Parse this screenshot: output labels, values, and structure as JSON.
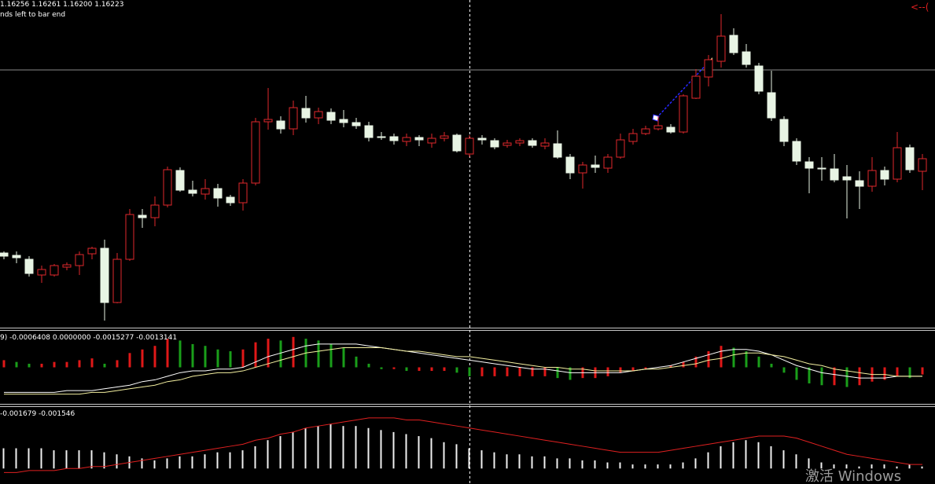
{
  "header": {
    "ohlc_text": "1.16256 1.16261 1.16200 1.16223",
    "timer_text": "nds left to bar end",
    "arrow_text": "<--("
  },
  "watermark": "激活 Windows",
  "chart_data": [
    {
      "type": "candlestick",
      "ylim": [
        1.15985,
        1.164
      ],
      "up_color": "#e0282d",
      "down_color": "#e8f4e4",
      "open": [
        1.16078,
        1.16075,
        1.1607,
        1.1605,
        1.1605,
        1.1606,
        1.16062,
        1.16077,
        1.16084,
        1.16015,
        1.1607,
        1.16126,
        1.16123,
        1.16139,
        1.16183,
        1.16158,
        1.16153,
        1.1616,
        1.16149,
        1.16142,
        1.16167,
        1.16245,
        1.16246,
        1.16236,
        1.16262,
        1.1625,
        1.16257,
        1.16248,
        1.16244,
        1.1624,
        1.16226,
        1.16226,
        1.1622,
        1.16225,
        1.16218,
        1.16224,
        1.16228,
        1.16204,
        1.16224,
        1.16221,
        1.16215,
        1.16218,
        1.16221,
        1.16214,
        1.16217,
        1.162,
        1.1618,
        1.1619,
        1.16186,
        1.162,
        1.1622,
        1.1623,
        1.16236,
        1.16238,
        1.16232,
        1.16275,
        1.16302,
        1.16322,
        1.16355,
        1.16334,
        1.16316,
        1.16282,
        1.16248,
        1.1622,
        1.16194,
        1.16186,
        1.16185,
        1.16175,
        1.1617,
        1.16163,
        1.16183,
        1.16172,
        1.16212,
        1.16182
      ],
      "high": [
        1.1608,
        1.1608,
        1.16074,
        1.16062,
        1.16064,
        1.16066,
        1.1608,
        1.16086,
        1.16095,
        1.16078,
        1.16134,
        1.16134,
        1.1615,
        1.16188,
        1.16187,
        1.1617,
        1.16172,
        1.16166,
        1.16152,
        1.16172,
        1.1625,
        1.16288,
        1.16252,
        1.16272,
        1.16278,
        1.16263,
        1.16262,
        1.1626,
        1.1625,
        1.16245,
        1.16232,
        1.1623,
        1.1623,
        1.16228,
        1.1623,
        1.16232,
        1.1623,
        1.16228,
        1.16228,
        1.16224,
        1.16222,
        1.16224,
        1.16224,
        1.16224,
        1.16234,
        1.16204,
        1.16194,
        1.16202,
        1.16204,
        1.1623,
        1.16236,
        1.1624,
        1.16252,
        1.16242,
        1.1628,
        1.16312,
        1.1633,
        1.16382,
        1.16364,
        1.16344,
        1.1632,
        1.1631,
        1.16252,
        1.16224,
        1.162,
        1.162,
        1.16204,
        1.1619,
        1.16182,
        1.162,
        1.16188,
        1.16232,
        1.16216,
        1.16204
      ],
      "low": [
        1.1607,
        1.16065,
        1.16048,
        1.1604,
        1.16048,
        1.16056,
        1.1605,
        1.1607,
        1.15992,
        1.16014,
        1.16068,
        1.1611,
        1.16112,
        1.16136,
        1.16156,
        1.1615,
        1.16146,
        1.16137,
        1.16138,
        1.16132,
        1.16164,
        1.16235,
        1.1623,
        1.16228,
        1.16244,
        1.16242,
        1.16242,
        1.16238,
        1.16236,
        1.1622,
        1.16222,
        1.16216,
        1.16214,
        1.16214,
        1.16212,
        1.1622,
        1.16206,
        1.162,
        1.16216,
        1.1621,
        1.16212,
        1.16214,
        1.16212,
        1.1621,
        1.16198,
        1.16172,
        1.1616,
        1.1618,
        1.1618,
        1.16198,
        1.16216,
        1.16228,
        1.16234,
        1.1623,
        1.1623,
        1.16274,
        1.1629,
        1.16314,
        1.1633,
        1.16314,
        1.1628,
        1.16246,
        1.16214,
        1.1619,
        1.16154,
        1.1617,
        1.16168,
        1.16122,
        1.16134,
        1.16156,
        1.16164,
        1.16168,
        1.1618,
        1.16158
      ],
      "close": [
        1.16074,
        1.16072,
        1.16052,
        1.16057,
        1.16062,
        1.16063,
        1.16076,
        1.16084,
        1.16015,
        1.1607,
        1.16127,
        1.16123,
        1.16139,
        1.16184,
        1.16158,
        1.16154,
        1.1616,
        1.16148,
        1.16142,
        1.16167,
        1.16245,
        1.16248,
        1.16236,
        1.16263,
        1.1625,
        1.16258,
        1.16247,
        1.16244,
        1.1624,
        1.16225,
        1.16225,
        1.16221,
        1.16225,
        1.16222,
        1.16224,
        1.16227,
        1.16208,
        1.16224,
        1.16222,
        1.16213,
        1.16218,
        1.16221,
        1.16215,
        1.16218,
        1.162,
        1.1618,
        1.1619,
        1.16187,
        1.162,
        1.16222,
        1.1623,
        1.16236,
        1.1624,
        1.16232,
        1.16278,
        1.16303,
        1.16324,
        1.16354,
        1.16333,
        1.16318,
        1.16284,
        1.1625,
        1.1622,
        1.16195,
        1.16186,
        1.16185,
        1.16171,
        1.16171,
        1.16163,
        1.16183,
        1.16172,
        1.16212,
        1.16184,
        1.16198
      ]
    },
    {
      "type": "bar",
      "label": "9) -0.0006408 0.0000000 -0.0015277 -0.0013141",
      "ylim": [
        -0.002,
        0.002
      ],
      "up_color": "#e01818",
      "down_color": "#1a9e1a",
      "values": [
        0.0004,
        0.0003,
        0.0002,
        0.0002,
        0.0003,
        0.0003,
        0.0004,
        0.0005,
        0.0002,
        0.0004,
        0.0008,
        0.001,
        0.0012,
        0.0016,
        0.0015,
        0.0013,
        0.0012,
        0.001,
        0.0009,
        0.001,
        0.0014,
        0.0016,
        0.0015,
        0.0017,
        0.0016,
        0.0015,
        0.0013,
        0.0011,
        0.0006,
        0.0002,
        -0.0001,
        -0.0001,
        -0.0002,
        -0.0002,
        -0.0002,
        -0.0002,
        -0.0003,
        -0.0005,
        -0.0005,
        -0.0005,
        -0.0005,
        -0.0005,
        -0.0005,
        -0.0005,
        -0.0006,
        -0.0007,
        -0.0006,
        -0.0006,
        -0.0005,
        -0.0003,
        -0.0002,
        -0.0001,
        0.0,
        0.0001,
        0.0003,
        0.0006,
        0.0009,
        0.0012,
        0.0011,
        0.0009,
        0.0006,
        0.0002,
        -0.0003,
        -0.0007,
        -0.0009,
        -0.001,
        -0.001,
        -0.0011,
        -0.001,
        -0.0008,
        -0.0007,
        -0.0005,
        -0.0006,
        -0.0004
      ],
      "series": [
        {
          "color": "#ffffff",
          "values": [
            -0.0014,
            -0.0014,
            -0.0014,
            -0.0014,
            -0.0014,
            -0.0013,
            -0.0013,
            -0.0013,
            -0.0012,
            -0.0011,
            -0.001,
            -0.0008,
            -0.0007,
            -0.0005,
            -0.0003,
            -0.0002,
            -0.0002,
            -0.0001,
            -0.0001,
            0.0,
            0.0003,
            0.0006,
            0.0008,
            0.001,
            0.0012,
            0.0013,
            0.0013,
            0.0013,
            0.0013,
            0.0012,
            0.0011,
            0.001,
            0.0009,
            0.0008,
            0.0007,
            0.0006,
            0.0005,
            0.0004,
            0.0003,
            0.0002,
            0.0001,
            0.0,
            -0.0001,
            -0.0001,
            -0.0002,
            -0.0003,
            -0.0003,
            -0.0003,
            -0.0003,
            -0.0003,
            -0.0002,
            -0.0001,
            0.0,
            0.0001,
            0.0003,
            0.0005,
            0.0007,
            0.0009,
            0.001,
            0.001,
            0.0009,
            0.0007,
            0.0004,
            0.0001,
            -0.0001,
            -0.0003,
            -0.0004,
            -0.0005,
            -0.0006,
            -0.0006,
            -0.0006,
            -0.0005,
            -0.0005,
            -0.0005
          ]
        },
        {
          "color": "#f4f0a0",
          "values": [
            -0.0015,
            -0.0015,
            -0.0015,
            -0.0015,
            -0.0015,
            -0.0015,
            -0.0015,
            -0.0014,
            -0.0014,
            -0.0013,
            -0.0012,
            -0.0011,
            -0.001,
            -0.0008,
            -0.0007,
            -0.0005,
            -0.0004,
            -0.0003,
            -0.0003,
            -0.0002,
            0.0,
            0.0002,
            0.0004,
            0.0006,
            0.0008,
            0.0009,
            0.001,
            0.0011,
            0.0011,
            0.0011,
            0.0011,
            0.001,
            0.0009,
            0.0009,
            0.0008,
            0.0007,
            0.0006,
            0.0006,
            0.0005,
            0.0004,
            0.0003,
            0.0002,
            0.0001,
            0.0,
            0.0,
            -0.0001,
            -0.0001,
            -0.0002,
            -0.0002,
            -0.0002,
            -0.0002,
            -0.0001,
            -0.0001,
            0.0,
            0.0001,
            0.0002,
            0.0004,
            0.0005,
            0.0007,
            0.0008,
            0.0008,
            0.0007,
            0.0006,
            0.0004,
            0.0002,
            0.0001,
            -0.0001,
            -0.0002,
            -0.0003,
            -0.0004,
            -0.0004,
            -0.0005,
            -0.0005,
            -0.0005
          ]
        }
      ]
    },
    {
      "type": "bar",
      "label": "-0.001679 -0.001546",
      "ylim": [
        -0.0003,
        0.003
      ],
      "color": "#f0f0f0",
      "values": [
        0.001,
        0.001,
        0.001,
        0.001,
        0.0009,
        0.0009,
        0.0009,
        0.0009,
        0.0008,
        0.0007,
        0.0006,
        0.0005,
        0.0004,
        0.0005,
        0.0006,
        0.0006,
        0.0007,
        0.0008,
        0.0008,
        0.0009,
        0.0011,
        0.0014,
        0.0016,
        0.0018,
        0.002,
        0.0021,
        0.0022,
        0.0021,
        0.0021,
        0.002,
        0.0019,
        0.0018,
        0.0017,
        0.0016,
        0.0015,
        0.0013,
        0.0012,
        0.001,
        0.0009,
        0.0008,
        0.0007,
        0.0007,
        0.0006,
        0.0006,
        0.0005,
        0.0005,
        0.0004,
        0.0004,
        0.0003,
        0.0003,
        0.0002,
        0.0002,
        0.0002,
        0.0002,
        0.0003,
        0.0005,
        0.0008,
        0.0011,
        0.0013,
        0.0014,
        0.0013,
        0.0011,
        0.0009,
        0.0007,
        0.0005,
        0.0003,
        0.0002,
        0.0002,
        0.0001,
        0.0002,
        0.0002,
        0.0001,
        0.0002,
        0.0001
      ],
      "series": [
        {
          "color": "#e02020",
          "values": [
            -0.0002,
            -0.0002,
            -0.0001,
            -0.0001,
            -0.0001,
            0.0,
            0.0,
            0.0001,
            0.0001,
            0.0002,
            0.0003,
            0.0004,
            0.0005,
            0.0006,
            0.0007,
            0.0008,
            0.0009,
            0.001,
            0.0011,
            0.0012,
            0.0014,
            0.0015,
            0.0017,
            0.0018,
            0.002,
            0.0021,
            0.0022,
            0.0023,
            0.0024,
            0.0025,
            0.0025,
            0.0025,
            0.0024,
            0.0024,
            0.0023,
            0.0022,
            0.0021,
            0.002,
            0.0019,
            0.0018,
            0.0017,
            0.0016,
            0.0015,
            0.0014,
            0.0013,
            0.0012,
            0.0011,
            0.001,
            0.0009,
            0.0008,
            0.0008,
            0.0008,
            0.0008,
            0.0009,
            0.001,
            0.0011,
            0.0012,
            0.0013,
            0.0014,
            0.0015,
            0.0016,
            0.0016,
            0.0016,
            0.0015,
            0.0013,
            0.0011,
            0.0009,
            0.0007,
            0.0006,
            0.0005,
            0.0004,
            0.0003,
            0.0002,
            0.0002
          ]
        }
      ]
    }
  ]
}
